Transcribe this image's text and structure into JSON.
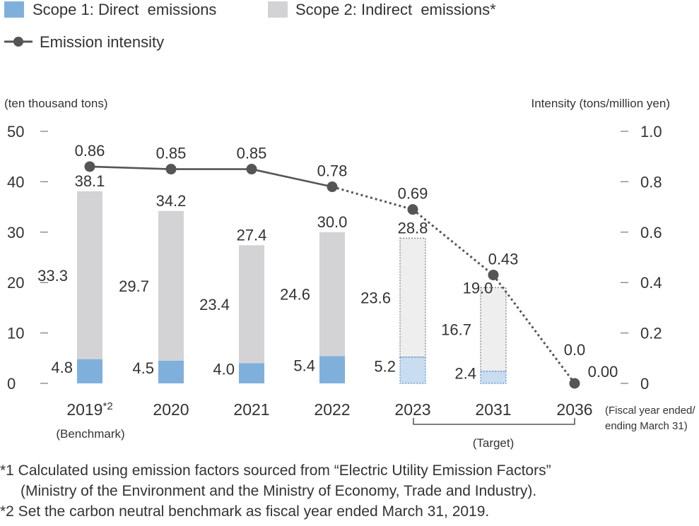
{
  "legend": {
    "scope1": "Scope 1: Direct  emissions",
    "scope2": "Scope 2: Indirect  emissions*",
    "intensity": "Emission intensity"
  },
  "colors": {
    "scope1": "#7fb0dc",
    "scope2": "#d3d3d5",
    "scope1_target": "#c9dcf0",
    "scope2_target": "#eeeeef",
    "line": "#555555",
    "text": "#333333"
  },
  "chart_data": {
    "type": "bar",
    "left_unit": "(ten thousand tons)",
    "right_unit": "Intensity (tons/million yen)",
    "left_ticks": [
      "0",
      "10",
      "20",
      "30",
      "40",
      "50"
    ],
    "right_ticks": [
      "0",
      "0.2",
      "0.4",
      "0.6",
      "0.8",
      "1.0"
    ],
    "ylim": [
      0,
      50
    ],
    "y2lim": [
      0,
      1.0
    ],
    "categories": [
      "2019*2",
      "2020",
      "2021",
      "2022",
      "2023",
      "2031",
      "2036"
    ],
    "benchmark_label": "(Benchmark)",
    "target_label": "(Target)",
    "fiscal_note": [
      "(Fiscal year ended/",
      "ending March 31)"
    ],
    "target_categories": [
      "2023",
      "2031"
    ],
    "series": [
      {
        "name": "Scope 1: Direct  emissions",
        "values": [
          4.8,
          4.5,
          4.0,
          5.4,
          5.2,
          2.4,
          0.0
        ]
      },
      {
        "name": "Scope 2: Indirect  emissions*",
        "values": [
          33.3,
          29.7,
          23.4,
          24.6,
          23.6,
          16.7,
          0.0
        ]
      },
      {
        "name": "Emission intensity",
        "axis": "right",
        "values": [
          0.86,
          0.85,
          0.85,
          0.78,
          0.69,
          0.43,
          0.0
        ]
      }
    ],
    "totals": [
      38.1,
      34.2,
      27.4,
      30.0,
      28.8,
      19.0,
      0.0
    ],
    "labels": {
      "scope1": [
        "4.8",
        "4.5",
        "4.0",
        "5.4",
        "5.2",
        "2.4",
        ""
      ],
      "scope2": [
        "33.3",
        "29.7",
        "23.4",
        "24.6",
        "23.6",
        "16.7",
        ""
      ],
      "totals": [
        "38.1",
        "34.2",
        "27.4",
        "30.0",
        "28.8",
        "19.0",
        "0.0"
      ],
      "intensity": [
        "0.86",
        "0.85",
        "0.85",
        "0.78",
        "0.69",
        "0.43",
        "0.00"
      ]
    }
  },
  "footnotes": [
    "*1 Calculated using emission factors sourced from “Electric Utility Emission Factors”",
    "(Ministry of the Environment and the Ministry of Economy, Trade and Industry).",
    "*2 Set the carbon neutral benchmark as fiscal year ended  March 31, 2019."
  ]
}
